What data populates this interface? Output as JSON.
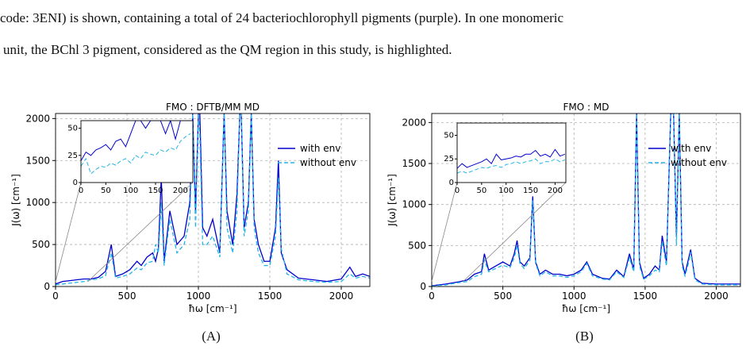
{
  "text": {
    "lines": [
      "code: 3ENI) is shown, containing a total of 24 bacteriochlorophyll pigments (purple). In one monomeric",
      "unit, the BChl 3 pigment, considered as the QM region in this study, is highlighted."
    ]
  },
  "chart_data": [
    {
      "type": "line",
      "title": "FMO : DFTB/MM MD",
      "x_label": "ħω [cm⁻¹]",
      "y_label": "J(ω) [cm⁻¹]",
      "panel_label": "(A)",
      "xlim": [
        0,
        2200
      ],
      "ylim": [
        0,
        2060
      ],
      "xticks": [
        0,
        500,
        1000,
        1500,
        2000
      ],
      "yticks": [
        0,
        500,
        1000,
        1500,
        2000
      ],
      "grid": true,
      "legend": "upper right",
      "x": [
        0,
        50,
        100,
        150,
        200,
        250,
        300,
        350,
        390,
        420,
        470,
        520,
        570,
        600,
        640,
        680,
        700,
        720,
        740,
        760,
        800,
        850,
        900,
        940,
        960,
        980,
        1000,
        1010,
        1030,
        1060,
        1100,
        1150,
        1180,
        1200,
        1240,
        1270,
        1290,
        1300,
        1320,
        1350,
        1370,
        1390,
        1420,
        1460,
        1500,
        1540,
        1560,
        1580,
        1620,
        1700,
        1800,
        1900,
        2000,
        2060,
        2100,
        2150,
        2200
      ],
      "series": [
        {
          "name": "with env",
          "color": "#0000cd",
          "dash": "solid",
          "values": [
            30,
            60,
            70,
            80,
            90,
            90,
            110,
            180,
            500,
            120,
            150,
            200,
            300,
            250,
            350,
            400,
            300,
            450,
            1300,
            300,
            900,
            500,
            600,
            1000,
            2060,
            900,
            2060,
            2060,
            700,
            600,
            800,
            400,
            2060,
            900,
            500,
            1100,
            2060,
            2060,
            700,
            1000,
            2060,
            800,
            500,
            300,
            300,
            700,
            1500,
            400,
            200,
            100,
            80,
            60,
            90,
            230,
            120,
            150,
            120
          ]
        },
        {
          "name": "without env",
          "color": "#22b5e6",
          "dash": "dashed",
          "values": [
            20,
            30,
            40,
            50,
            60,
            80,
            90,
            130,
            400,
            100,
            120,
            150,
            220,
            200,
            280,
            300,
            500,
            400,
            1000,
            250,
            800,
            400,
            500,
            800,
            2060,
            700,
            2060,
            1800,
            500,
            500,
            600,
            350,
            2060,
            700,
            400,
            900,
            2060,
            2060,
            600,
            900,
            2060,
            700,
            400,
            250,
            250,
            600,
            1300,
            450,
            150,
            80,
            60,
            50,
            60,
            150,
            100,
            120,
            100
          ]
        }
      ],
      "inset": {
        "xlim": [
          0,
          225
        ],
        "ylim": [
          0,
          57
        ],
        "xticks": [
          0,
          50,
          100,
          150,
          200
        ],
        "yticks": [
          0,
          25,
          50
        ],
        "x": [
          0,
          10,
          20,
          30,
          40,
          50,
          60,
          70,
          80,
          90,
          100,
          110,
          120,
          130,
          140,
          150,
          160,
          170,
          180,
          190,
          200,
          210,
          220
        ],
        "series": [
          {
            "color": "#0000cd",
            "dash": "solid",
            "values": [
              20,
              28,
              25,
              30,
              32,
              35,
              30,
              38,
              40,
              33,
              45,
              57,
              57,
              50,
              57,
              57,
              57,
              45,
              57,
              40,
              57,
              57,
              57
            ]
          },
          {
            "color": "#22b5e6",
            "dash": "dashed",
            "values": [
              15,
              22,
              8,
              12,
              15,
              14,
              18,
              16,
              20,
              22,
              18,
              25,
              22,
              28,
              26,
              25,
              30,
              28,
              32,
              30,
              38,
              42,
              45
            ]
          }
        ]
      }
    },
    {
      "type": "line",
      "title": "FMO : MD",
      "x_label": "ħω [cm⁻¹]",
      "y_label": "J(ω) [cm⁻¹]",
      "panel_label": "(B)",
      "xlim": [
        0,
        2170
      ],
      "ylim": [
        0,
        2110
      ],
      "xticks": [
        0,
        500,
        1000,
        1500,
        2000
      ],
      "yticks": [
        0,
        500,
        1000,
        1500,
        2000
      ],
      "grid": true,
      "legend": "upper right",
      "x": [
        0,
        100,
        200,
        250,
        300,
        350,
        370,
        400,
        450,
        500,
        550,
        580,
        600,
        620,
        650,
        690,
        710,
        730,
        760,
        800,
        850,
        900,
        950,
        1000,
        1050,
        1090,
        1130,
        1200,
        1250,
        1300,
        1350,
        1390,
        1420,
        1440,
        1460,
        1490,
        1530,
        1570,
        1600,
        1620,
        1650,
        1680,
        1700,
        1720,
        1740,
        1760,
        1780,
        1800,
        1820,
        1850,
        1900,
        2000,
        2100,
        2170
      ],
      "series": [
        {
          "name": "with env",
          "color": "#0000cd",
          "dash": "solid",
          "values": [
            10,
            30,
            60,
            80,
            150,
            180,
            400,
            200,
            250,
            300,
            250,
            400,
            560,
            300,
            250,
            350,
            1100,
            300,
            150,
            200,
            150,
            150,
            130,
            150,
            200,
            300,
            150,
            100,
            90,
            200,
            120,
            400,
            200,
            2110,
            300,
            100,
            150,
            250,
            200,
            620,
            300,
            2110,
            2110,
            600,
            2110,
            300,
            150,
            300,
            450,
            100,
            40,
            30,
            30,
            30
          ]
        },
        {
          "name": "without env",
          "color": "#22b5e6",
          "dash": "dashed",
          "values": [
            5,
            20,
            50,
            60,
            120,
            150,
            320,
            180,
            220,
            260,
            230,
            350,
            500,
            280,
            220,
            320,
            1050,
            280,
            130,
            180,
            130,
            130,
            110,
            130,
            180,
            280,
            130,
            90,
            80,
            180,
            110,
            350,
            180,
            2110,
            250,
            90,
            130,
            200,
            180,
            550,
            250,
            2110,
            2110,
            500,
            2110,
            250,
            130,
            250,
            420,
            80,
            30,
            20,
            20,
            20
          ]
        }
      ],
      "inset": {
        "xlim": [
          0,
          222
        ],
        "ylim": [
          0,
          63
        ],
        "xticks": [
          0,
          50,
          100,
          150,
          200
        ],
        "yticks": [
          0,
          25,
          50
        ],
        "x": [
          0,
          10,
          20,
          30,
          40,
          50,
          60,
          70,
          80,
          90,
          100,
          110,
          120,
          130,
          140,
          150,
          160,
          170,
          180,
          190,
          200,
          210,
          220
        ],
        "series": [
          {
            "color": "#0000cd",
            "dash": "solid",
            "values": [
              15,
              20,
              16,
              18,
              20,
              22,
              25,
              20,
              30,
              24,
              25,
              26,
              28,
              27,
              30,
              30,
              34,
              28,
              30,
              27,
              35,
              28,
              30
            ]
          },
          {
            "color": "#22b5e6",
            "dash": "dashed",
            "values": [
              10,
              12,
              10,
              12,
              14,
              16,
              15,
              17,
              18,
              16,
              19,
              20,
              22,
              20,
              22,
              23,
              25,
              20,
              22,
              22,
              25,
              22,
              24
            ]
          }
        ]
      }
    }
  ]
}
